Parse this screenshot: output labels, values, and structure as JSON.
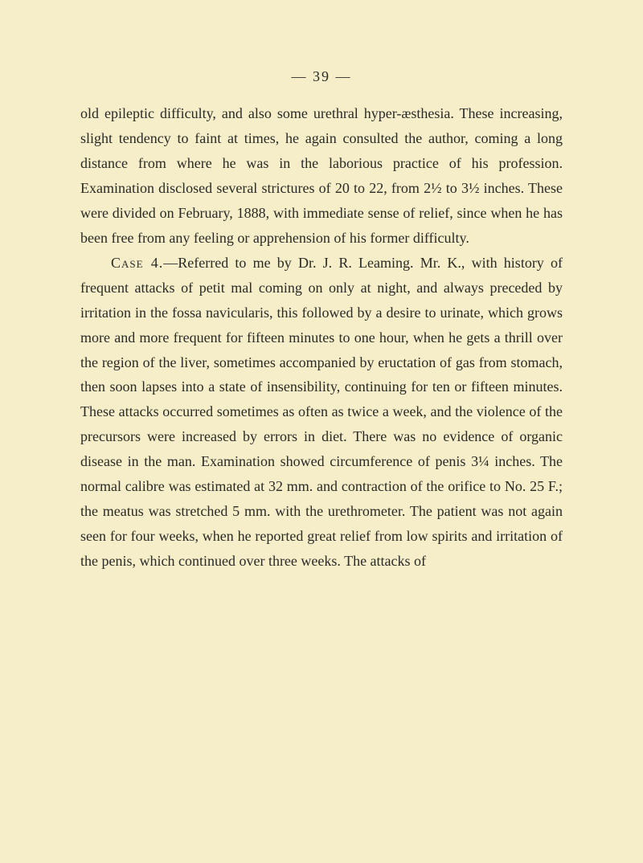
{
  "page": {
    "number": "— 39 —",
    "background_color": "#f5eec9",
    "text_color": "#2a2a26",
    "font_size": 18,
    "line_height": 1.72
  },
  "paragraphs": {
    "p1": "old epileptic difficulty, and also some urethral hyper-æsthesia. These increasing, slight tendency to faint at times, he again consulted the author, coming a long distance from where he was in the laborious practice of his profession. Examination disclosed several strictures of 20 to 22, from 2½ to 3½ inches. These were divided on February, 1888, with immediate sense of relief, since when he has been free from any feeling or apprehension of his former difficulty.",
    "p2_lead": "Case 4.",
    "p2_rest": "—Referred to me by Dr. J. R. Leaming. Mr. K., with history of frequent attacks of petit mal coming on only at night, and always preceded by irritation in the fossa navicularis, this followed by a desire to urinate, which grows more and more frequent for fifteen minutes to one hour, when he gets a thrill over the region of the liver, sometimes accompanied by eructation of gas from stomach, then soon lapses into a state of insensibility, continuing for ten or fifteen minutes. These attacks occurred sometimes as often as twice a week, and the violence of the precursors were increased by errors in diet. There was no evidence of organic disease in the man. Examination showed circumference of penis 3¼ inches. The normal calibre was estimated at 32 mm. and contraction of the orifice to No. 25 F.; the meatus was stretched 5 mm. with the urethrometer. The patient was not again seen for four weeks, when he reported great relief from low spirits and irritation of the penis, which continued over three weeks. The attacks of"
  }
}
